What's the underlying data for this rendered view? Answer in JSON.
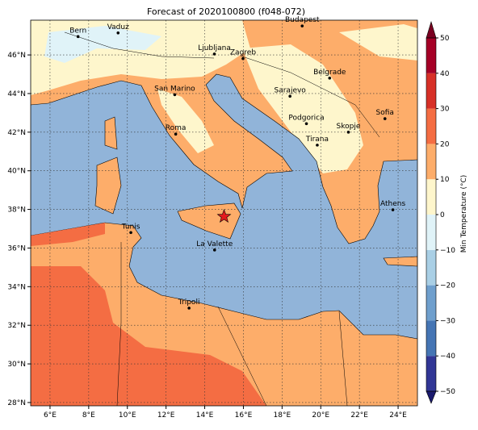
{
  "title": "Forecast of 2020100800 (f048-072)",
  "map": {
    "xlim": [
      5,
      25
    ],
    "ylim": [
      27.83,
      47.8
    ],
    "xticks": [
      {
        "value": 6,
        "label": "6°E"
      },
      {
        "value": 8,
        "label": "8°E"
      },
      {
        "value": 10,
        "label": "10°E"
      },
      {
        "value": 12,
        "label": "12°E"
      },
      {
        "value": 14,
        "label": "14°E"
      },
      {
        "value": 16,
        "label": "16°E"
      },
      {
        "value": 18,
        "label": "18°E"
      },
      {
        "value": 20,
        "label": "20°E"
      },
      {
        "value": 22,
        "label": "22°E"
      },
      {
        "value": 24,
        "label": "24°E"
      }
    ],
    "yticks": [
      {
        "value": 28,
        "label": "28°N"
      },
      {
        "value": 30,
        "label": "30°N"
      },
      {
        "value": 32,
        "label": "32°N"
      },
      {
        "value": 34,
        "label": "34°N"
      },
      {
        "value": 36,
        "label": "36°N"
      },
      {
        "value": 38,
        "label": "38°N"
      },
      {
        "value": 40,
        "label": "40°N"
      },
      {
        "value": 42,
        "label": "42°N"
      },
      {
        "value": 44,
        "label": "44°N"
      },
      {
        "value": 46,
        "label": "46°N"
      }
    ],
    "grid": true,
    "cities": [
      {
        "name": "Bern",
        "lon": 7.45,
        "lat": 46.95
      },
      {
        "name": "Vaduz",
        "lon": 9.52,
        "lat": 47.14
      },
      {
        "name": "Budapest",
        "lon": 19.04,
        "lat": 47.5
      },
      {
        "name": "Ljubljana",
        "lon": 14.5,
        "lat": 46.05
      },
      {
        "name": "Zagreb",
        "lon": 15.98,
        "lat": 45.81
      },
      {
        "name": "Belgrade",
        "lon": 20.46,
        "lat": 44.8
      },
      {
        "name": "Sarajevo",
        "lon": 18.41,
        "lat": 43.86
      },
      {
        "name": "San Marino",
        "lon": 12.45,
        "lat": 43.94
      },
      {
        "name": "Roma",
        "lon": 12.5,
        "lat": 41.9
      },
      {
        "name": "Podgorica",
        "lon": 19.26,
        "lat": 42.44
      },
      {
        "name": "Skopje",
        "lon": 21.43,
        "lat": 42.0
      },
      {
        "name": "Sofia",
        "lon": 23.32,
        "lat": 42.7
      },
      {
        "name": "Tirana",
        "lon": 19.82,
        "lat": 41.33
      },
      {
        "name": "Athens",
        "lon": 23.73,
        "lat": 37.98
      },
      {
        "name": "Tunis",
        "lon": 10.18,
        "lat": 36.8
      },
      {
        "name": "La Valette",
        "lon": 14.51,
        "lat": 35.9
      },
      {
        "name": "Tripoli",
        "lon": 13.19,
        "lat": 32.89
      }
    ],
    "marker": {
      "lon": 15.0,
      "lat": 37.63,
      "color": "#e31a1c"
    }
  },
  "colorbar": {
    "label": "Min Temperature (°C)",
    "clim": [
      -50,
      50
    ],
    "ticks": [
      {
        "value": -50,
        "label": "−50"
      },
      {
        "value": -40,
        "label": "−40"
      },
      {
        "value": -30,
        "label": "−30"
      },
      {
        "value": -20,
        "label": "−20"
      },
      {
        "value": -10,
        "label": "−10"
      },
      0,
      10,
      20,
      30,
      40,
      50
    ],
    "colors": [
      "#313695",
      "#4575b4",
      "#6f9fcd",
      "#a9cfe5",
      "#e0f3f8",
      "#fef6cc",
      "#fdad6a",
      "#f46d43",
      "#d73027",
      "#a50026"
    ],
    "under": "#1a1a6e",
    "over": "#7a0021"
  }
}
